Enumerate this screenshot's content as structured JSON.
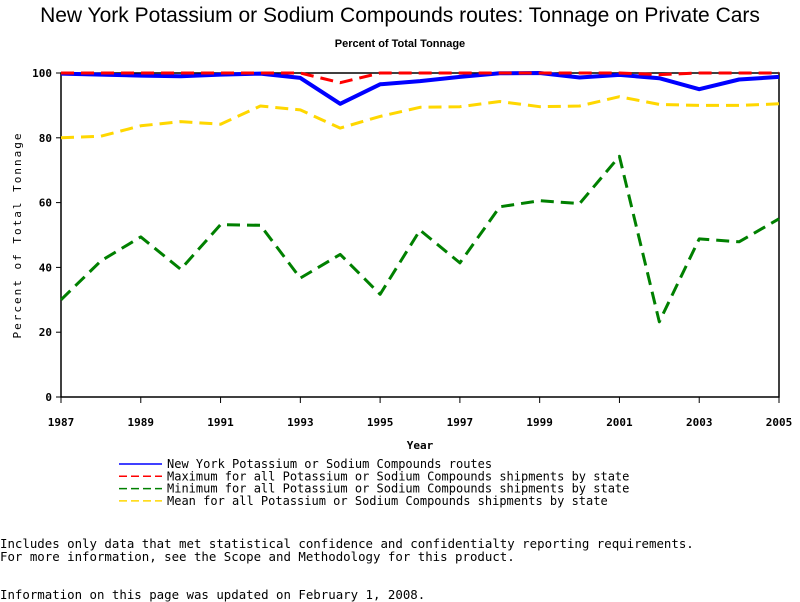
{
  "chart_data": {
    "type": "line",
    "title": "New York Potassium or Sodium Compounds routes: Tonnage on Private Cars",
    "subtitle": "Percent of Total Tonnage",
    "xlabel": "Year",
    "ylabel": "Percent of Total Tonnage",
    "xlim": [
      1987,
      2005
    ],
    "ylim": [
      0,
      100
    ],
    "x_ticks": [
      1987,
      1989,
      1991,
      1993,
      1995,
      1997,
      1999,
      2001,
      2003,
      2005
    ],
    "y_ticks": [
      0,
      20,
      40,
      60,
      80,
      100
    ],
    "grid": false,
    "x": [
      1987,
      1988,
      1989,
      1990,
      1991,
      1992,
      1993,
      1994,
      1995,
      1996,
      1997,
      1998,
      1999,
      2000,
      2001,
      2002,
      2003,
      2004,
      2005
    ],
    "series": [
      {
        "name": "New York Potassium or Sodium Compounds routes",
        "color": "#0000ff",
        "style": "solid",
        "values": [
          99.8,
          99.5,
          99.2,
          99.0,
          99.5,
          99.8,
          98.5,
          90.5,
          96.5,
          97.5,
          98.8,
          99.9,
          100,
          98.6,
          99.4,
          98.4,
          95.0,
          98.0,
          98.8
        ]
      },
      {
        "name": "Maximum for all Potassium or Sodium Compounds shipments by state",
        "color": "#ff0000",
        "style": "dashed",
        "values": [
          100,
          100,
          100,
          100,
          100,
          100,
          100,
          97,
          100,
          100,
          100,
          100,
          100,
          100,
          100,
          99.5,
          100,
          100,
          100
        ]
      },
      {
        "name": "Minimum for all Potassium or Sodium Compounds shipments by state",
        "color": "#008000",
        "style": "dashed",
        "values": [
          30,
          42,
          49.4,
          39.4,
          53.2,
          53,
          36.7,
          44,
          31.7,
          51.5,
          41.4,
          58.7,
          60.6,
          59.7,
          74.3,
          23.2,
          48.8,
          47.9,
          55
        ]
      },
      {
        "name": "Mean for all Potassium or Sodium Compounds shipments by state",
        "color": "#ffd700",
        "style": "dashed",
        "values": [
          80,
          80.5,
          83.7,
          85,
          84.2,
          89.8,
          88.6,
          83,
          86.6,
          89.4,
          89.6,
          91.2,
          89.6,
          89.8,
          92.7,
          90.3,
          90,
          90,
          90.5
        ]
      }
    ],
    "legend_position": "bottom"
  },
  "notes": {
    "line1": "Includes only data that met statistical confidence and confidentialty reporting requirements.",
    "line2": "For more information, see the Scope and Methodology for this product.",
    "updated": "Information on this page was updated on February 1, 2008."
  }
}
